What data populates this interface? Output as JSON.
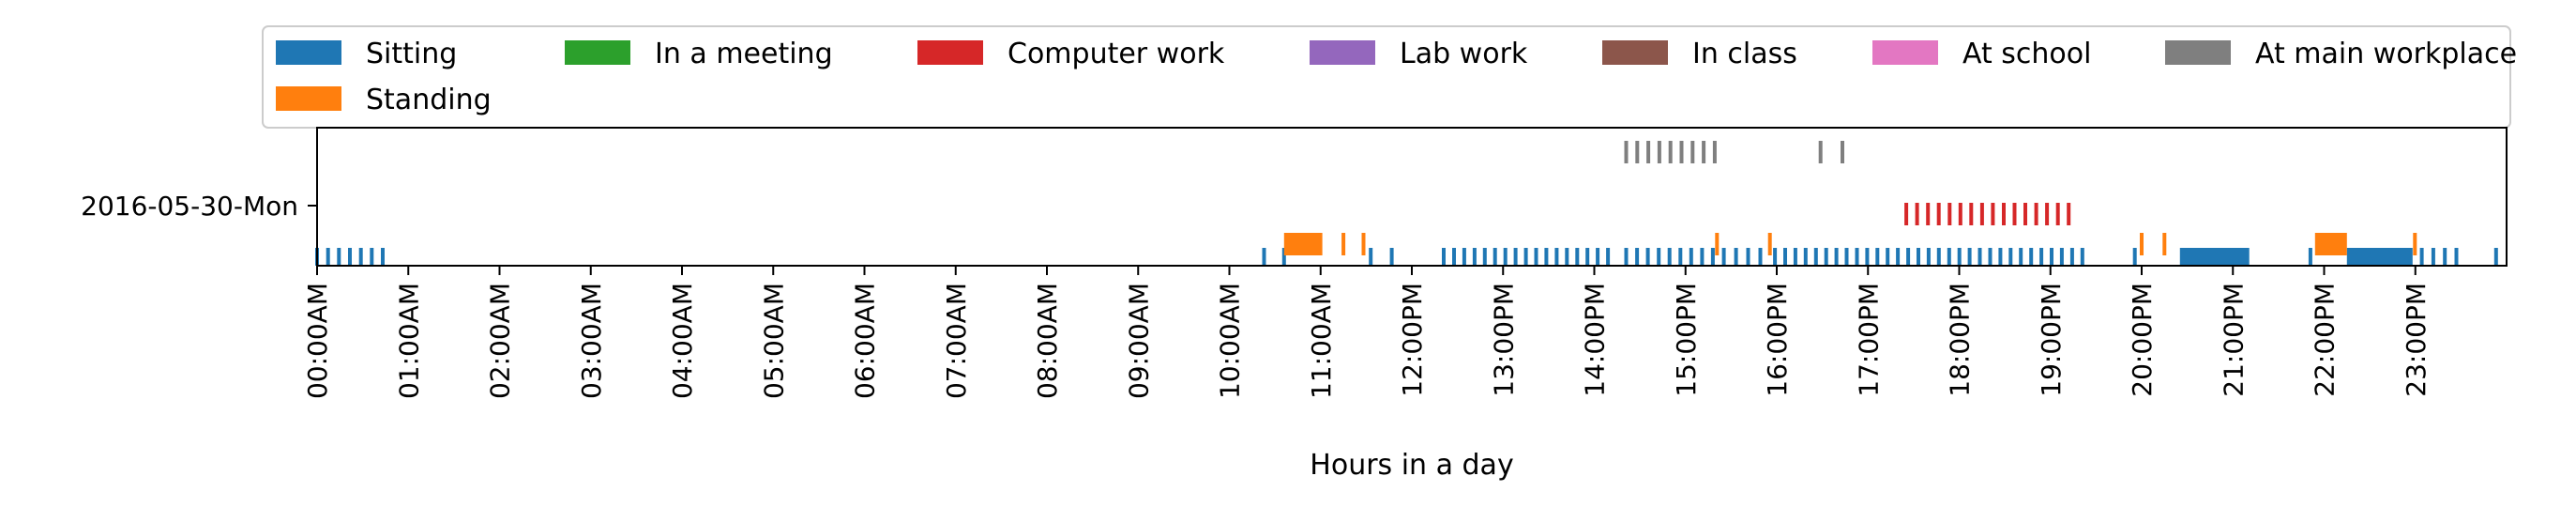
{
  "chart_data": {
    "type": "timeline",
    "title": "",
    "xlabel": "Hours in a day",
    "ylabel": "",
    "row_label": "2016-05-30-Mon",
    "x_unit": "hours",
    "xlim": [
      0,
      24
    ],
    "x_ticks": [
      {
        "value": 0,
        "label": "00:00AM"
      },
      {
        "value": 1,
        "label": "01:00AM"
      },
      {
        "value": 2,
        "label": "02:00AM"
      },
      {
        "value": 3,
        "label": "03:00AM"
      },
      {
        "value": 4,
        "label": "04:00AM"
      },
      {
        "value": 5,
        "label": "05:00AM"
      },
      {
        "value": 6,
        "label": "06:00AM"
      },
      {
        "value": 7,
        "label": "07:00AM"
      },
      {
        "value": 8,
        "label": "08:00AM"
      },
      {
        "value": 9,
        "label": "09:00AM"
      },
      {
        "value": 10,
        "label": "10:00AM"
      },
      {
        "value": 11,
        "label": "11:00AM"
      },
      {
        "value": 12,
        "label": "12:00PM"
      },
      {
        "value": 13,
        "label": "13:00PM"
      },
      {
        "value": 14,
        "label": "14:00PM"
      },
      {
        "value": 15,
        "label": "15:00PM"
      },
      {
        "value": 16,
        "label": "16:00PM"
      },
      {
        "value": 17,
        "label": "17:00PM"
      },
      {
        "value": 18,
        "label": "18:00PM"
      },
      {
        "value": 19,
        "label": "19:00PM"
      },
      {
        "value": 20,
        "label": "20:00PM"
      },
      {
        "value": 21,
        "label": "21:00PM"
      },
      {
        "value": 22,
        "label": "22:00PM"
      },
      {
        "value": 23,
        "label": "23:00PM"
      }
    ],
    "legend_position": "top",
    "series": [
      {
        "name": "Sitting",
        "color": "#1f77b4",
        "lane": "low",
        "ranges": [
          [
            0.0,
            0.72
          ],
          [
            10.38,
            10.6
          ],
          [
            11.55,
            11.78
          ],
          [
            12.35,
            14.15
          ],
          [
            14.35,
            15.3
          ],
          [
            15.42,
            15.82
          ],
          [
            15.98,
            19.35
          ],
          [
            19.85,
            20.0
          ],
          [
            20.42,
            21.18
          ],
          [
            21.8,
            21.9
          ],
          [
            22.25,
            22.97
          ],
          [
            23.07,
            23.45
          ],
          [
            23.85,
            23.92
          ]
        ]
      },
      {
        "name": "In a meeting",
        "color": "#2ca02c",
        "lane": "mid",
        "ranges": []
      },
      {
        "name": "Computer work",
        "color": "#d62728",
        "lane": "mid",
        "ranges": [
          [
            17.42,
            19.2
          ]
        ]
      },
      {
        "name": "Lab work",
        "color": "#9467bd",
        "lane": "mid",
        "ranges": []
      },
      {
        "name": "In class",
        "color": "#8c564b",
        "lane": "high",
        "ranges": []
      },
      {
        "name": "At school",
        "color": "#e377c2",
        "lane": "high",
        "ranges": []
      },
      {
        "name": "At main workplace",
        "color": "#7f7f7f",
        "lane": "high",
        "ranges": [
          [
            14.35,
            15.32
          ],
          [
            16.48,
            16.72
          ]
        ]
      },
      {
        "name": "Standing",
        "color": "#ff7f0e",
        "lane": "lowmid",
        "ranges": [
          [
            10.6,
            11.02
          ],
          [
            11.25,
            11.47
          ],
          [
            15.32,
            15.37
          ],
          [
            15.9,
            15.95
          ],
          [
            20.0,
            20.25
          ],
          [
            21.9,
            22.25
          ],
          [
            22.97,
            23.02
          ]
        ]
      }
    ]
  }
}
